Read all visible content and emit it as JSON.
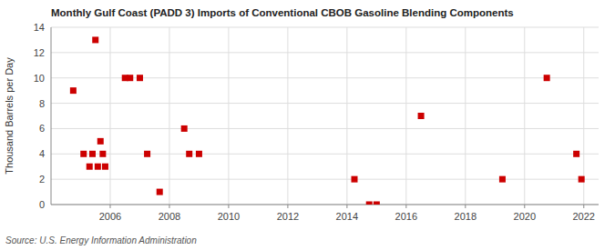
{
  "chart_data": {
    "type": "scatter",
    "title": "Monthly Gulf Coast (PADD 3) Imports of Conventional CBOB Gasoline Blending Components",
    "y_label": "Thousand Barrels per Day",
    "annotation": "Source: U.S. Energy Information Administration",
    "x": [
      2004.75,
      2005.1,
      2005.3,
      2005.4,
      2005.5,
      2005.58,
      2005.67,
      2005.75,
      2005.83,
      2006.5,
      2006.67,
      2007.0,
      2007.25,
      2007.67,
      2008.5,
      2008.67,
      2009.0,
      2014.25,
      2014.75,
      2015.0,
      2016.5,
      2019.25,
      2020.75,
      2021.75,
      2021.92
    ],
    "values": [
      9,
      4,
      3,
      4,
      13,
      3,
      5,
      4,
      3,
      10,
      10,
      10,
      4,
      1,
      6,
      4,
      4,
      2,
      0,
      0,
      7,
      2,
      10,
      4,
      2
    ],
    "color": "#cc0000",
    "marker": "square",
    "xlim": [
      2004.0,
      2022.5
    ],
    "ylim": [
      0,
      14
    ],
    "xticks": [
      2006,
      2008,
      2010,
      2012,
      2014,
      2016,
      2018,
      2020,
      2022
    ],
    "yticks": [
      0,
      2,
      4,
      6,
      8,
      10,
      12,
      14
    ],
    "grid": true
  }
}
